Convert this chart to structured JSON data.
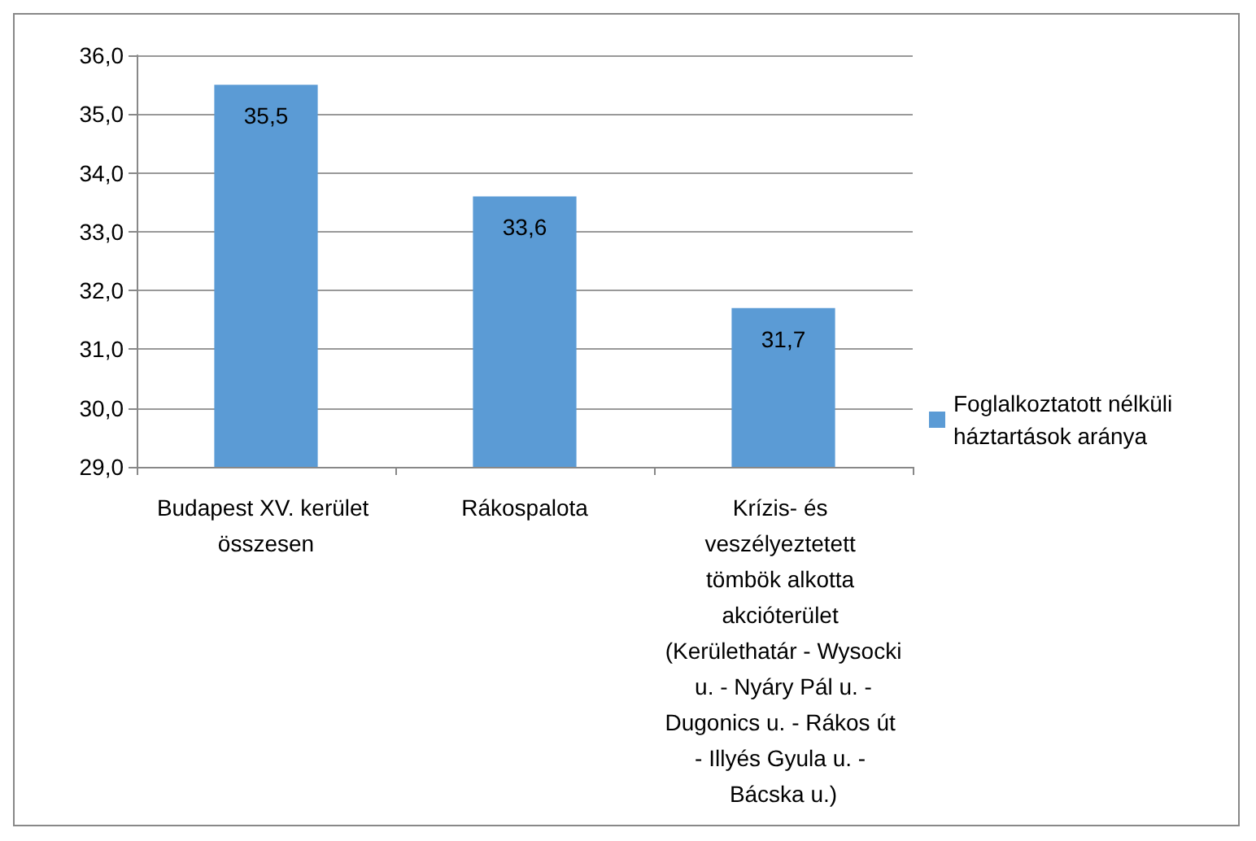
{
  "chart_data": {
    "type": "bar",
    "categories": [
      "Budapest XV. kerület összesen",
      "Rákospalota",
      "Krízis- és veszélyeztetett tömbök alkotta akcióterület (Kerülethatár - Wysocki u. - Nyáry Pál u. - Dugonics u. - Rákos út - Illyés Gyula u. - Bácska u.)"
    ],
    "series": [
      {
        "name": "Foglalkoztatott nélküli háztartások aránya",
        "color": "#5b9bd5",
        "values": [
          35.5,
          33.6,
          31.7
        ],
        "value_labels": [
          "35,5",
          "33,6",
          "31,7"
        ]
      }
    ],
    "ylim": [
      29,
      36
    ],
    "yticks": [
      {
        "value": 29,
        "label": "29,0"
      },
      {
        "value": 30,
        "label": "30,0"
      },
      {
        "value": 31,
        "label": "31,0"
      },
      {
        "value": 32,
        "label": "32,0"
      },
      {
        "value": 33,
        "label": "33,0"
      },
      {
        "value": 34,
        "label": "34,0"
      },
      {
        "value": 35,
        "label": "35,0"
      },
      {
        "value": 36,
        "label": "36,0"
      }
    ],
    "grid": "y",
    "legend": "right"
  }
}
